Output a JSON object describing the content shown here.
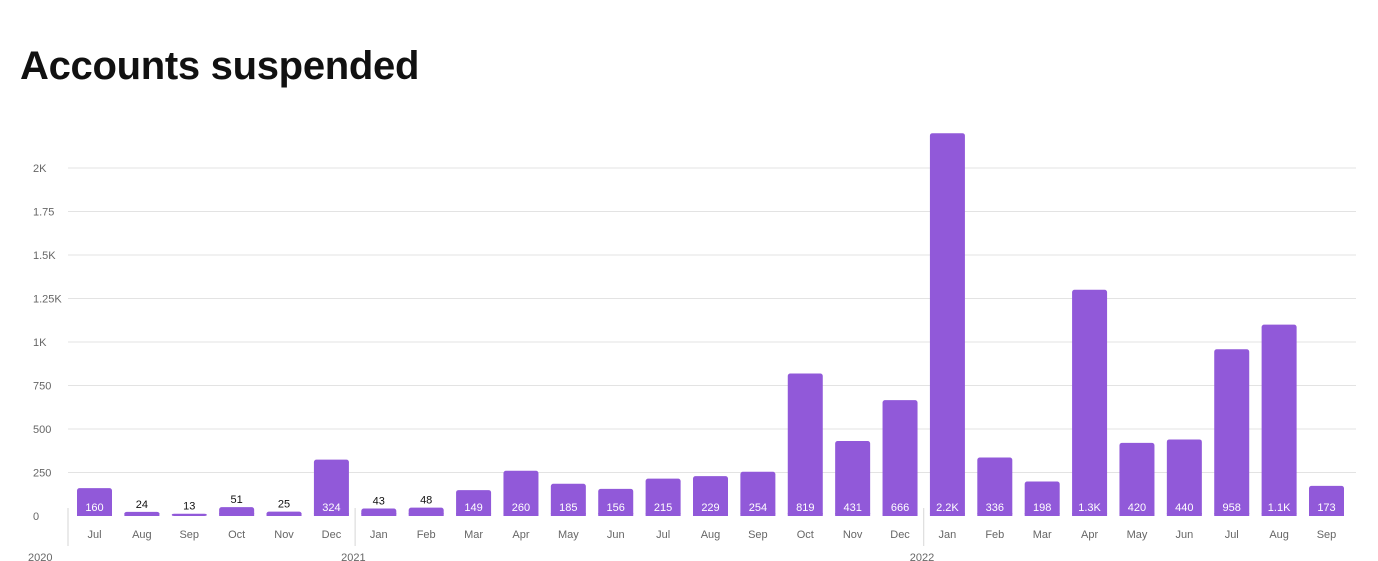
{
  "title": "Accounts suspended",
  "chart_data": {
    "type": "bar",
    "title": "Accounts suspended",
    "xlabel": "",
    "ylabel": "",
    "ylim": [
      0,
      2000
    ],
    "yticks": [
      "0",
      "250",
      "500",
      "750",
      "1K",
      "1.25K",
      "1.5K",
      "1.75",
      "2K"
    ],
    "grid": true,
    "bar_color": "#9159D9",
    "categories": [
      "Jul",
      "Aug",
      "Sep",
      "Oct",
      "Nov",
      "Dec",
      "Jan",
      "Feb",
      "Mar",
      "Apr",
      "May",
      "Jun",
      "Jul",
      "Aug",
      "Sep",
      "Oct",
      "Nov",
      "Dec",
      "Jan",
      "Feb",
      "Mar",
      "Apr",
      "May",
      "Jun",
      "Jul",
      "Aug",
      "Sep"
    ],
    "years": [
      {
        "label": "2020",
        "start_index": 0
      },
      {
        "label": "2021",
        "start_index": 6
      },
      {
        "label": "2022",
        "start_index": 18
      }
    ],
    "values": [
      160,
      24,
      13,
      51,
      25,
      324,
      43,
      48,
      149,
      260,
      185,
      156,
      215,
      229,
      254,
      819,
      431,
      666,
      2200,
      336,
      198,
      1300,
      420,
      440,
      958,
      1100,
      173
    ],
    "data_labels": [
      "160",
      "24",
      "13",
      "51",
      "25",
      "324",
      "43",
      "48",
      "149",
      "260",
      "185",
      "156",
      "215",
      "229",
      "254",
      "819",
      "431",
      "666",
      "2.2K",
      "336",
      "198",
      "1.3K",
      "420",
      "440",
      "958",
      "1.1K",
      "173"
    ]
  }
}
